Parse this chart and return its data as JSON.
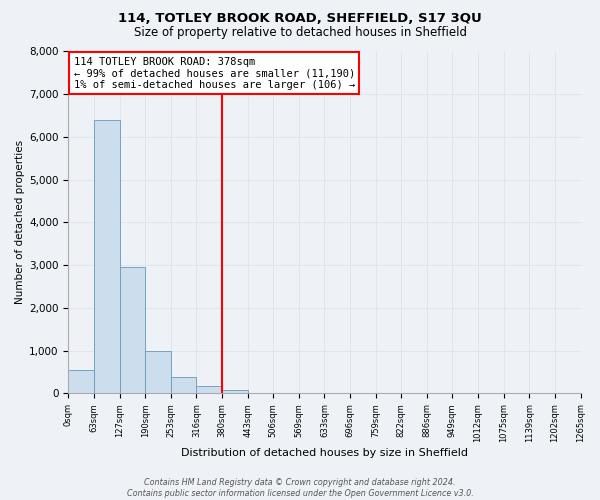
{
  "title": "114, TOTLEY BROOK ROAD, SHEFFIELD, S17 3QU",
  "subtitle": "Size of property relative to detached houses in Sheffield",
  "xlabel": "Distribution of detached houses by size in Sheffield",
  "ylabel": "Number of detached properties",
  "bin_labels": [
    "0sqm",
    "63sqm",
    "127sqm",
    "190sqm",
    "253sqm",
    "316sqm",
    "380sqm",
    "443sqm",
    "506sqm",
    "569sqm",
    "633sqm",
    "696sqm",
    "759sqm",
    "822sqm",
    "886sqm",
    "949sqm",
    "1012sqm",
    "1075sqm",
    "1139sqm",
    "1202sqm",
    "1265sqm"
  ],
  "bar_values": [
    550,
    6400,
    2950,
    1000,
    380,
    180,
    70,
    0,
    0,
    0,
    0,
    0,
    0,
    0,
    0,
    0,
    0,
    0,
    0,
    0
  ],
  "bar_color": "#ccdded",
  "bar_edge_color": "#6699bb",
  "grid_color": "#dde5ee",
  "background_color": "#eef2f7",
  "vline_color": "red",
  "ylim": [
    0,
    8000
  ],
  "yticks": [
    0,
    1000,
    2000,
    3000,
    4000,
    5000,
    6000,
    7000,
    8000
  ],
  "annotation_title": "114 TOTLEY BROOK ROAD: 378sqm",
  "annotation_line1": "← 99% of detached houses are smaller (11,190)",
  "annotation_line2": "1% of semi-detached houses are larger (106) →",
  "footer_line1": "Contains HM Land Registry data © Crown copyright and database right 2024.",
  "footer_line2": "Contains public sector information licensed under the Open Government Licence v3.0."
}
